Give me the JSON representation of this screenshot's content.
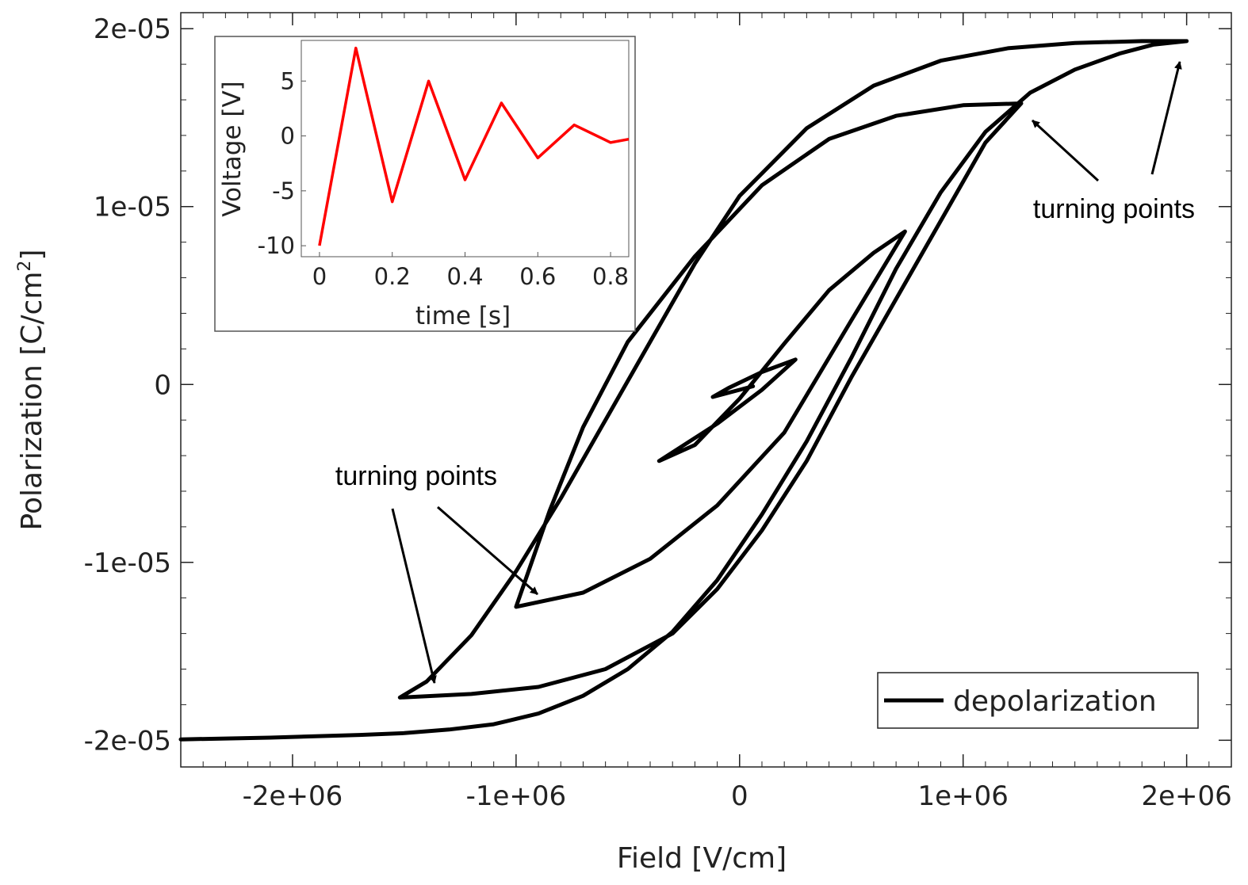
{
  "chart_data": [
    {
      "id": "main",
      "type": "line",
      "xlabel": "Field [V/cm]",
      "ylabel_main": "Polarization [C/cm",
      "ylabel_sup": "2",
      "ylabel_close": "]",
      "xlim": [
        -2500000,
        2200000
      ],
      "ylim": [
        -2.15e-05,
        2.09e-05
      ],
      "xticks": [
        -2000000,
        -1000000,
        0,
        1000000,
        2000000
      ],
      "xtick_labels": [
        "-2e+06",
        "-1e+06",
        "0",
        "1e+06",
        "2e+06"
      ],
      "yticks": [
        -2e-05,
        -1e-05,
        0,
        1e-05,
        2e-05
      ],
      "ytick_labels": [
        "-2e-05",
        "-1e-05",
        "0",
        "1e-05",
        "2e-05"
      ],
      "grid": false,
      "legend_position": "bottom-right",
      "series": [
        {
          "name": "depolarization",
          "color": "#000000",
          "x": [
            -2500000,
            -2100000,
            -1700000,
            -1500000,
            -1300000,
            -1100000,
            -900000,
            -700000,
            -500000,
            -300000,
            -100000,
            100000,
            300000,
            500000,
            700000,
            900000,
            1100000,
            1300000,
            1500000,
            1700000,
            1850000,
            2000000,
            1800000,
            1500000,
            1200000,
            900000,
            600000,
            300000,
            0,
            -200000,
            -400000,
            -600000,
            -800000,
            -1000000,
            -1200000,
            -1400000,
            -1520000,
            -1200000,
            -900000,
            -600000,
            -300000,
            -100000,
            100000,
            300000,
            500000,
            700000,
            900000,
            1100000,
            1260000,
            1000000,
            700000,
            400000,
            100000,
            -200000,
            -500000,
            -700000,
            -850000,
            -1000000,
            -700000,
            -400000,
            -100000,
            200000,
            500000,
            740000,
            600000,
            400000,
            200000,
            0,
            -200000,
            -360000,
            -100000,
            100000,
            250000,
            100000,
            -50000,
            -120000,
            0,
            60000
          ],
          "y": [
            -1.995e-05,
            -1.985e-05,
            -1.97e-05,
            -1.96e-05,
            -1.94e-05,
            -1.91e-05,
            -1.85e-05,
            -1.75e-05,
            -1.6e-05,
            -1.39e-05,
            -1.1e-05,
            -7.3e-06,
            -3.2e-06,
            1.5e-06,
            6.5e-06,
            1.08e-05,
            1.42e-05,
            1.64e-05,
            1.77e-05,
            1.86e-05,
            1.91e-05,
            1.93e-05,
            1.93e-05,
            1.92e-05,
            1.89e-05,
            1.82e-05,
            1.68e-05,
            1.44e-05,
            1.06e-05,
            6.8e-06,
            2.4e-06,
            -2e-06,
            -6.4e-06,
            -1.05e-05,
            -1.41e-05,
            -1.67e-05,
            -1.76e-05,
            -1.74e-05,
            -1.7e-05,
            -1.6e-05,
            -1.4e-05,
            -1.15e-05,
            -8.2e-06,
            -4.3e-06,
            4e-07,
            4.8e-06,
            9.2e-06,
            1.36e-05,
            1.58e-05,
            1.57e-05,
            1.51e-05,
            1.38e-05,
            1.12e-05,
            7.2e-06,
            2.4e-06,
            -2.4e-06,
            -7.1e-06,
            -1.25e-05,
            -1.17e-05,
            -9.8e-06,
            -6.8e-06,
            -2.7e-06,
            3.6e-06,
            8.6e-06,
            7.4e-06,
            5.3e-06,
            2.3e-06,
            -8e-07,
            -3.4e-06,
            -4.3e-06,
            -2.2e-06,
            -3e-07,
            1.4e-06,
            7e-07,
            -2e-07,
            -7e-07,
            -3e-07,
            -1e-07
          ]
        }
      ],
      "annotations": [
        {
          "text": "turning points",
          "region": "upper-right"
        },
        {
          "text": "turning points",
          "region": "lower-left"
        }
      ]
    },
    {
      "id": "inset",
      "type": "line",
      "xlabel": "time [s]",
      "ylabel": "Voltage [V]",
      "xlim": [
        -0.05,
        0.85
      ],
      "ylim": [
        -11,
        8.7
      ],
      "xticks": [
        0,
        0.2,
        0.4,
        0.6,
        0.8
      ],
      "xtick_labels": [
        "0",
        "0.2",
        "0.4",
        "0.6",
        "0.8"
      ],
      "yticks": [
        -10,
        -5,
        0,
        5
      ],
      "ytick_labels": [
        "-10",
        "-5",
        "0",
        "5"
      ],
      "series": [
        {
          "color": "#ff0000",
          "x": [
            0,
            0.1,
            0.2,
            0.3,
            0.4,
            0.5,
            0.6,
            0.7,
            0.8,
            0.85
          ],
          "y": [
            -10,
            8,
            -6,
            5,
            -4,
            3,
            -2,
            1,
            -0.6,
            -0.3
          ]
        }
      ]
    }
  ]
}
